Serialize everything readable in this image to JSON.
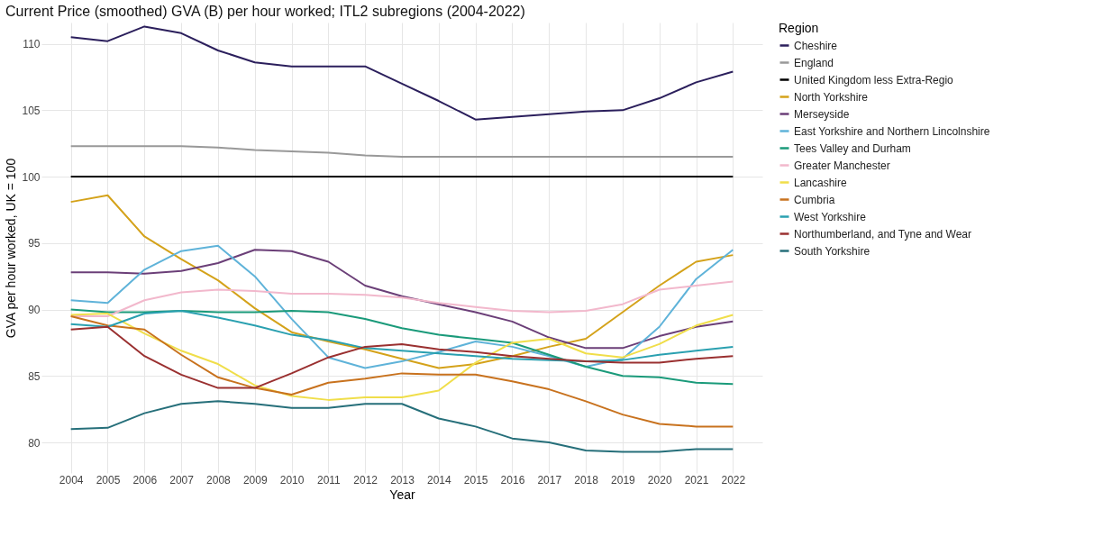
{
  "chart_data": {
    "type": "line",
    "title": "Current Price (smoothed) GVA (B) per hour worked; ITL2 subregions (2004-2022)",
    "xlabel": "Year",
    "ylabel": "GVA per hour worked, UK = 100",
    "legend_title": "Region",
    "x": [
      2004,
      2005,
      2006,
      2007,
      2008,
      2009,
      2010,
      2011,
      2012,
      2013,
      2014,
      2015,
      2016,
      2017,
      2018,
      2019,
      2020,
      2021,
      2022
    ],
    "xlim": [
      2003.2,
      2022.8
    ],
    "xticks": [
      2004,
      2005,
      2006,
      2007,
      2008,
      2009,
      2010,
      2011,
      2012,
      2013,
      2014,
      2015,
      2016,
      2017,
      2018,
      2019,
      2020,
      2021,
      2022
    ],
    "ylim": [
      77.7,
      111.6
    ],
    "yticks": [
      80,
      85,
      90,
      95,
      100,
      105,
      110
    ],
    "grid": true,
    "legend": "right",
    "marker": "none",
    "line_style": "solid",
    "series": [
      {
        "name": "Cheshire",
        "color": "#2b1f5c",
        "values": [
          110.5,
          110.2,
          111.3,
          110.8,
          109.5,
          108.6,
          108.3,
          108.3,
          108.3,
          107.0,
          105.7,
          104.3,
          104.5,
          104.7,
          104.9,
          105.0,
          105.9,
          107.1,
          107.9
        ]
      },
      {
        "name": "England",
        "color": "#999999",
        "values": [
          102.3,
          102.3,
          102.3,
          102.3,
          102.2,
          102.0,
          101.9,
          101.8,
          101.6,
          101.5,
          101.5,
          101.5,
          101.5,
          101.5,
          101.5,
          101.5,
          101.5,
          101.5,
          101.5
        ]
      },
      {
        "name": "United Kingdom less Extra-Regio",
        "color": "#000000",
        "values": [
          100,
          100,
          100,
          100,
          100,
          100,
          100,
          100,
          100,
          100,
          100,
          100,
          100,
          100,
          100,
          100,
          100,
          100,
          100
        ]
      },
      {
        "name": "North Yorkshire",
        "color": "#d4a21a",
        "values": [
          98.1,
          98.6,
          95.5,
          93.8,
          92.2,
          90.1,
          88.3,
          87.6,
          87.0,
          86.3,
          85.6,
          85.9,
          86.5,
          87.2,
          87.8,
          89.8,
          91.8,
          93.6,
          94.1
        ]
      },
      {
        "name": "Merseyside",
        "color": "#6b3f78",
        "values": [
          92.8,
          92.8,
          92.7,
          92.9,
          93.5,
          94.5,
          94.4,
          93.6,
          91.8,
          91.0,
          90.4,
          89.8,
          89.1,
          87.9,
          87.1,
          87.1,
          88.0,
          88.7,
          89.1
        ]
      },
      {
        "name": "East Yorkshire and Northern Lincolnshire",
        "color": "#5fb3d9",
        "values": [
          90.7,
          90.5,
          93.0,
          94.4,
          94.8,
          92.5,
          89.3,
          86.4,
          85.6,
          86.1,
          86.8,
          87.6,
          87.2,
          86.5,
          85.7,
          86.3,
          88.7,
          92.3,
          94.5
        ]
      },
      {
        "name": "Tees Valley and Durham",
        "color": "#1a9a7a",
        "values": [
          90.0,
          89.8,
          89.8,
          89.9,
          89.8,
          89.8,
          89.9,
          89.8,
          89.3,
          88.6,
          88.1,
          87.8,
          87.5,
          86.6,
          85.7,
          85.0,
          84.9,
          84.5,
          84.4
        ]
      },
      {
        "name": "Greater Manchester",
        "color": "#f2b8cc",
        "values": [
          89.5,
          89.5,
          90.7,
          91.3,
          91.5,
          91.4,
          91.2,
          91.2,
          91.1,
          90.9,
          90.5,
          90.2,
          89.9,
          89.8,
          89.9,
          90.4,
          91.5,
          91.8,
          92.1
        ]
      },
      {
        "name": "Lancashire",
        "color": "#f0de4a",
        "values": [
          89.6,
          89.7,
          88.2,
          86.9,
          85.9,
          84.3,
          83.5,
          83.2,
          83.4,
          83.4,
          83.9,
          86.0,
          87.5,
          87.8,
          86.7,
          86.4,
          87.4,
          88.8,
          89.6
        ]
      },
      {
        "name": "Cumbria",
        "color": "#c8721e",
        "values": [
          89.5,
          88.8,
          88.5,
          86.6,
          84.9,
          84.1,
          83.6,
          84.5,
          84.8,
          85.2,
          85.1,
          85.1,
          84.6,
          84.0,
          83.1,
          82.1,
          81.4,
          81.2,
          81.2
        ]
      },
      {
        "name": "West Yorkshire",
        "color": "#2aa0b0",
        "values": [
          88.9,
          88.7,
          89.7,
          89.9,
          89.4,
          88.8,
          88.1,
          87.7,
          87.1,
          86.9,
          86.7,
          86.5,
          86.3,
          86.2,
          86.1,
          86.2,
          86.6,
          86.9,
          87.2
        ]
      },
      {
        "name": "Northumberland, and Tyne and Wear",
        "color": "#9a3030",
        "values": [
          88.5,
          88.7,
          86.5,
          85.1,
          84.1,
          84.1,
          85.2,
          86.4,
          87.2,
          87.4,
          87.0,
          86.8,
          86.5,
          86.3,
          86.1,
          86.0,
          86.0,
          86.3,
          86.5
        ]
      },
      {
        "name": "South Yorkshire",
        "color": "#266f7a",
        "values": [
          81.0,
          81.1,
          82.2,
          82.9,
          83.1,
          82.9,
          82.6,
          82.6,
          82.9,
          82.9,
          81.8,
          81.2,
          80.3,
          80.0,
          79.4,
          79.3,
          79.3,
          79.5,
          79.5
        ]
      }
    ]
  }
}
